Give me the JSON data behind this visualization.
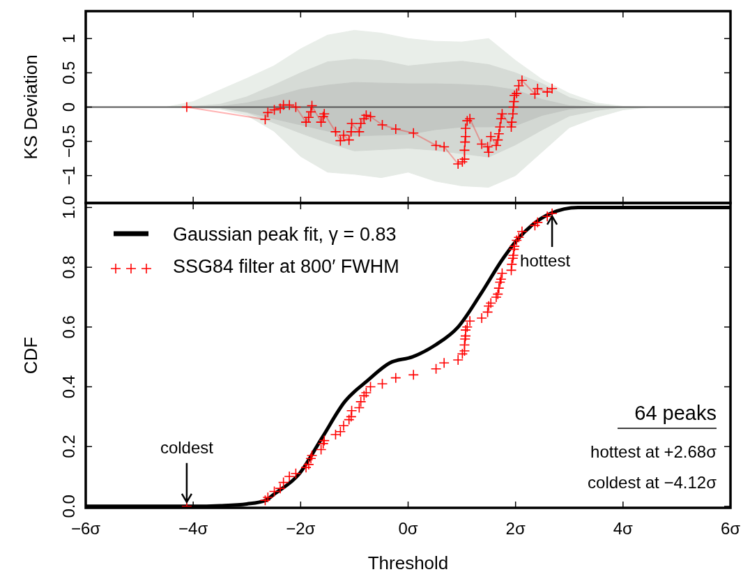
{
  "chart_data": [
    {
      "type": "line",
      "ylabel": "KS Deviation",
      "xlim": [
        -6,
        6
      ],
      "ylim": [
        -1.4,
        1.4
      ],
      "xticks": [
        -6,
        -4,
        -2,
        0,
        2,
        4,
        6
      ],
      "yticks": [
        {
          "value": -1,
          "label": "−1"
        },
        {
          "value": -0.5,
          "label": "−0.5"
        },
        {
          "value": 0,
          "label": "0"
        },
        {
          "value": 0.5,
          "label": "0.5"
        },
        {
          "value": 1,
          "label": "1"
        }
      ],
      "tick_labels": "y",
      "x": [
        -4.5,
        -4,
        -3.5,
        -3,
        -2.5,
        -2,
        -1.5,
        -1,
        -0.5,
        0,
        0.5,
        1,
        1.5,
        2,
        2.5,
        3,
        3.5,
        4,
        4.5
      ],
      "ref_lines": [
        {
          "axis": "y",
          "value": 0,
          "color": "#555555"
        }
      ],
      "series": [
        {
          "type": "area",
          "color": "#e9eee9",
          "values": [
            0,
            0.08,
            0.25,
            0.42,
            0.6,
            0.85,
            1.05,
            1.12,
            1.08,
            1.0,
            0.96,
            0.95,
            1.0,
            0.68,
            0.4,
            0.2,
            0.06,
            0.01,
            0
          ]
        },
        {
          "type": "area",
          "color": "#e6ebe6",
          "values": [
            0,
            -0.01,
            -0.03,
            -0.12,
            -0.35,
            -0.72,
            -0.95,
            -0.98,
            -1.03,
            -0.95,
            -1.08,
            -1.15,
            -1.17,
            -1.0,
            -0.65,
            -0.3,
            -0.15,
            -0.04,
            0
          ]
        },
        {
          "type": "area",
          "color": "#d6dbd6",
          "values": [
            0,
            0.01,
            0.04,
            0.15,
            0.32,
            0.5,
            0.66,
            0.7,
            0.68,
            0.6,
            0.64,
            0.67,
            0.62,
            0.5,
            0.34,
            0.14,
            0.03,
            0,
            0
          ]
        },
        {
          "type": "area",
          "color": "#d3d8d3",
          "values": [
            0,
            0,
            -0.01,
            -0.08,
            -0.23,
            -0.38,
            -0.52,
            -0.64,
            -0.62,
            -0.6,
            -0.63,
            -0.68,
            -0.73,
            -0.55,
            -0.33,
            -0.13,
            -0.05,
            0,
            0
          ]
        },
        {
          "type": "area",
          "color": "#c6cac6",
          "values": [
            0,
            0,
            0.01,
            0.06,
            0.15,
            0.26,
            0.32,
            0.36,
            0.35,
            0.34,
            0.34,
            0.33,
            0.31,
            0.25,
            0.11,
            0.02,
            0,
            0,
            0
          ]
        },
        {
          "type": "area",
          "color": "#c3c7c3",
          "values": [
            0,
            0,
            -0.01,
            -0.07,
            -0.17,
            -0.26,
            -0.35,
            -0.42,
            -0.41,
            -0.4,
            -0.33,
            -0.29,
            -0.29,
            -0.27,
            -0.12,
            -0.03,
            0,
            0,
            0
          ]
        },
        {
          "color": "#ff0000",
          "marker": "cross",
          "x": [
            -4.12,
            -2.66,
            -2.61,
            -2.49,
            -2.38,
            -2.32,
            -2.21,
            -2.09,
            -1.9,
            -1.85,
            -1.81,
            -1.79,
            -1.62,
            -1.58,
            -1.56,
            -1.35,
            -1.26,
            -1.2,
            -1.1,
            -1.06,
            -1.05,
            -0.91,
            -0.88,
            -0.82,
            -0.78,
            -0.7,
            -0.48,
            -0.23,
            0.1,
            0.52,
            0.67,
            0.93,
            1.01,
            1.05,
            1.05,
            1.06,
            1.07,
            1.07,
            1.1,
            1.15,
            1.37,
            1.48,
            1.5,
            1.54,
            1.64,
            1.67,
            1.69,
            1.71,
            1.73,
            1.75,
            1.92,
            1.93,
            1.95,
            1.96,
            1.97,
            1.98,
            2.02,
            2.06,
            2.12,
            2.36,
            2.41,
            2.59,
            2.68
          ],
          "values": [
            0,
            -0.18,
            -0.08,
            -0.04,
            -0.02,
            0.03,
            0.03,
            0,
            -0.22,
            -0.15,
            -0.07,
            0.02,
            -0.22,
            -0.14,
            -0.1,
            -0.36,
            -0.49,
            -0.41,
            -0.48,
            -0.36,
            -0.24,
            -0.36,
            -0.24,
            -0.17,
            -0.12,
            -0.14,
            -0.26,
            -0.32,
            -0.38,
            -0.56,
            -0.58,
            -0.83,
            -0.8,
            -0.76,
            -0.63,
            -0.51,
            -0.43,
            -0.31,
            -0.2,
            -0.17,
            -0.54,
            -0.58,
            -0.66,
            -0.43,
            -0.56,
            -0.48,
            -0.39,
            -0.29,
            -0.17,
            -0.1,
            -0.29,
            -0.22,
            -0.1,
            0,
            0.08,
            0.17,
            0.2,
            0.31,
            0.39,
            0.19,
            0.27,
            0.22,
            0.27
          ]
        }
      ]
    },
    {
      "type": "line",
      "xlabel": "Threshold",
      "ylabel": "CDF",
      "xlim": [
        -6,
        6
      ],
      "ylim": [
        -0.005,
        1.015
      ],
      "xticks": [
        {
          "value": -6,
          "label": "−6σ"
        },
        {
          "value": -4,
          "label": "−4σ"
        },
        {
          "value": -2,
          "label": "−2σ"
        },
        {
          "value": 0,
          "label": "0σ"
        },
        {
          "value": 2,
          "label": "2σ"
        },
        {
          "value": 4,
          "label": "4σ"
        },
        {
          "value": 6,
          "label": "6σ"
        }
      ],
      "yticks": [
        {
          "value": 0,
          "label": "0.0"
        },
        {
          "value": 0.2,
          "label": "0.2"
        },
        {
          "value": 0.4,
          "label": "0.4"
        },
        {
          "value": 0.6,
          "label": "0.6"
        },
        {
          "value": 0.8,
          "label": "0.8"
        },
        {
          "value": 1,
          "label": "1.0"
        }
      ],
      "legend": "top left",
      "annotations": [
        {
          "text": "coldest",
          "x": -4.12,
          "y": 0
        },
        {
          "text": "hottest",
          "x": 2.68,
          "y": 0.98
        },
        "64 peaks",
        "hottest at +2.68σ",
        "coldest at −4.12σ"
      ],
      "series": [
        {
          "name": "Gaussian peak fit, γ = 0.83",
          "color": "#000000",
          "marker": "none",
          "x": [
            -6,
            -4,
            -3.5,
            -3,
            -2.65,
            -2.5,
            -2.02,
            -1.6,
            -1.18,
            -0.76,
            -0.34,
            0.08,
            0.51,
            0.93,
            1.35,
            1.77,
            2.02,
            2.3,
            2.65,
            3.16,
            4,
            6
          ],
          "values": [
            0,
            0,
            0.002,
            0.008,
            0.02,
            0.04,
            0.11,
            0.23,
            0.35,
            0.42,
            0.48,
            0.5,
            0.54,
            0.6,
            0.71,
            0.83,
            0.89,
            0.94,
            0.98,
            1,
            1,
            1
          ]
        },
        {
          "type": "scatter",
          "name": "SSG84 filter at 800′ FWHM",
          "color": "#ff0000",
          "marker": "cross",
          "x": [
            -4.12,
            -2.66,
            -2.61,
            -2.49,
            -2.38,
            -2.32,
            -2.21,
            -2.09,
            -1.9,
            -1.85,
            -1.81,
            -1.79,
            -1.62,
            -1.58,
            -1.56,
            -1.35,
            -1.26,
            -1.2,
            -1.1,
            -1.06,
            -1.05,
            -0.91,
            -0.88,
            -0.82,
            -0.78,
            -0.7,
            -0.48,
            -0.23,
            0.1,
            0.52,
            0.67,
            0.93,
            1.01,
            1.05,
            1.05,
            1.06,
            1.07,
            1.07,
            1.1,
            1.15,
            1.37,
            1.48,
            1.5,
            1.54,
            1.64,
            1.67,
            1.69,
            1.71,
            1.73,
            1.75,
            1.92,
            1.93,
            1.95,
            1.96,
            1.97,
            1.98,
            2.02,
            2.06,
            2.12,
            2.36,
            2.41,
            2.59,
            2.68
          ],
          "values": [
            0,
            0.02,
            0.03,
            0.05,
            0.06,
            0.08,
            0.1,
            0.11,
            0.13,
            0.14,
            0.16,
            0.17,
            0.19,
            0.21,
            0.22,
            0.24,
            0.25,
            0.27,
            0.29,
            0.3,
            0.32,
            0.33,
            0.35,
            0.37,
            0.38,
            0.4,
            0.41,
            0.43,
            0.44,
            0.46,
            0.48,
            0.49,
            0.51,
            0.52,
            0.54,
            0.56,
            0.57,
            0.59,
            0.6,
            0.62,
            0.63,
            0.65,
            0.67,
            0.68,
            0.7,
            0.71,
            0.73,
            0.75,
            0.76,
            0.78,
            0.79,
            0.81,
            0.83,
            0.84,
            0.86,
            0.87,
            0.89,
            0.9,
            0.92,
            0.94,
            0.95,
            0.97,
            0.98
          ]
        }
      ]
    }
  ]
}
